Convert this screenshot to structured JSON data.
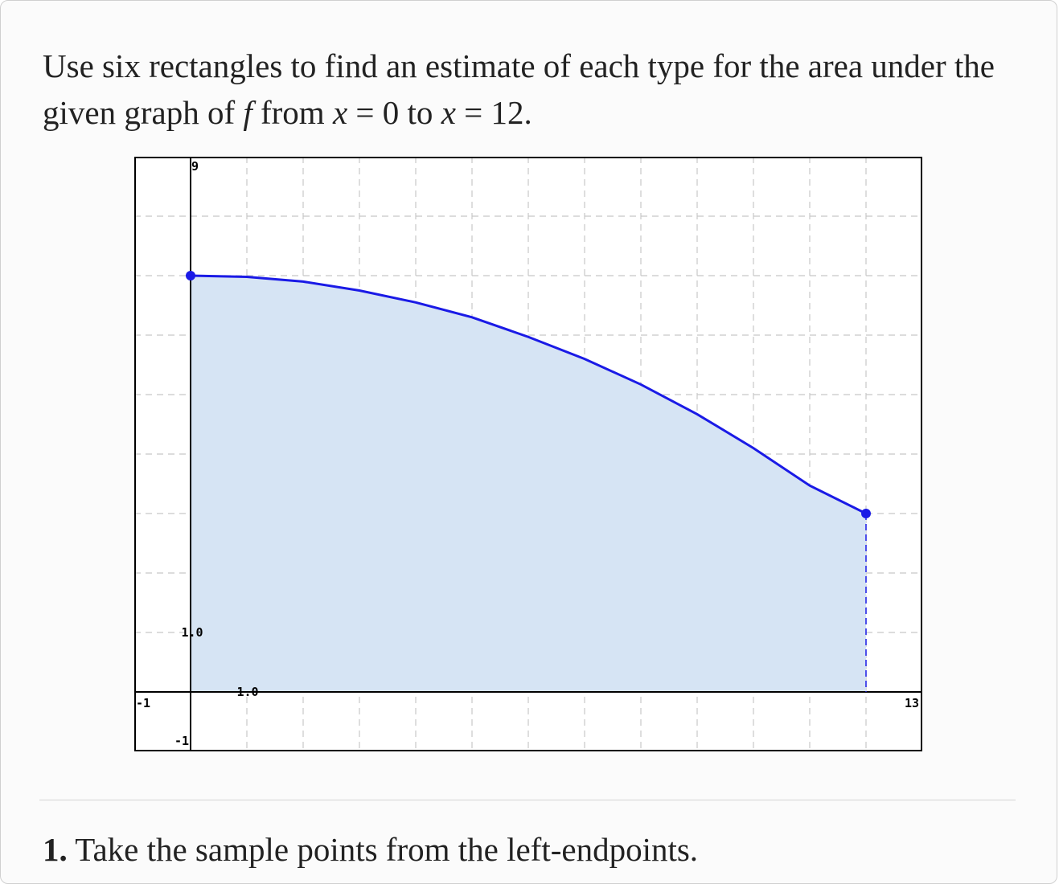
{
  "problem": {
    "intro": "Use six rectangles to find an estimate of each type for the area under the given graph of",
    "func": "f",
    "from_word": "from",
    "var1": "x",
    "eq1": "= 0",
    "to_word": "to",
    "var2": "x",
    "eq2": "= 12."
  },
  "question": {
    "number": "1.",
    "text": "Take the sample points from the left-endpoints."
  },
  "chart_data": {
    "type": "area",
    "x": [
      0,
      1,
      2,
      3,
      4,
      5,
      6,
      7,
      8,
      9,
      10,
      11,
      12
    ],
    "y": [
      7,
      6.98,
      6.9,
      6.75,
      6.55,
      6.3,
      5.97,
      5.6,
      5.17,
      4.67,
      4.1,
      3.47,
      3
    ],
    "endpoints": [
      {
        "x": 0,
        "y": 7
      },
      {
        "x": 12,
        "y": 3
      }
    ],
    "xlim": [
      -1,
      13
    ],
    "ylim": [
      -1,
      9
    ],
    "grid": true,
    "tick_labels": {
      "x_min": "-1",
      "x_max": "13",
      "y_min": "-1",
      "y_max": "9",
      "x_unit": "1.0",
      "y_unit": "1.0"
    },
    "colors": {
      "curve": "#1a1ae6",
      "fill": "#d6e4f4",
      "grid": "#c8c8c8",
      "axis": "#000000"
    }
  }
}
